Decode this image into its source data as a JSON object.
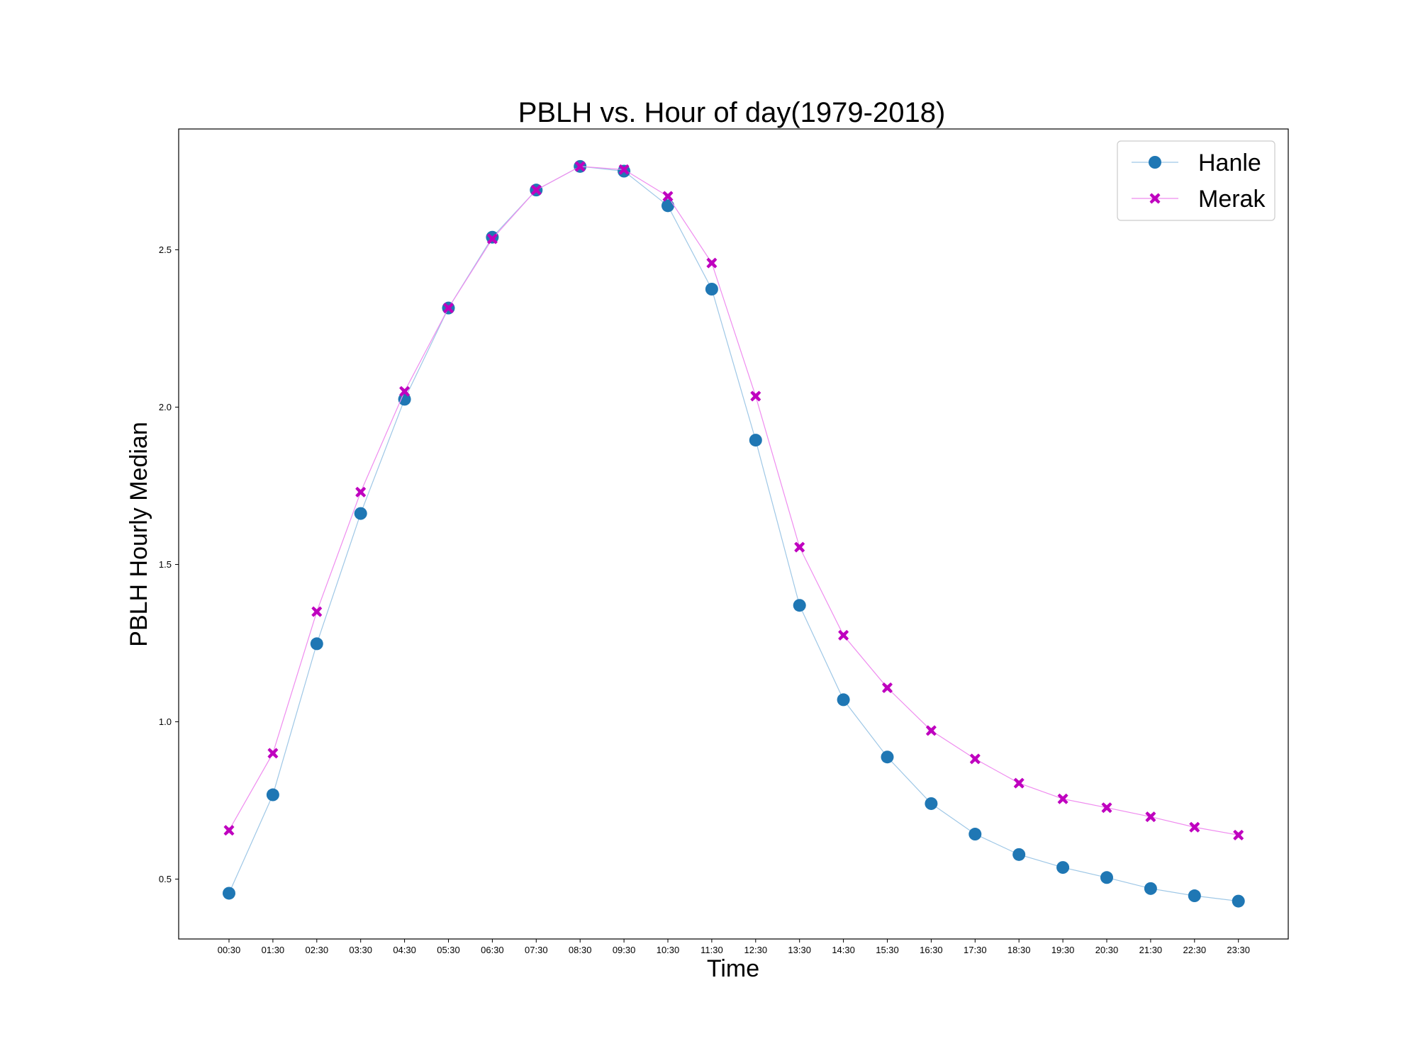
{
  "chart_data": {
    "type": "line",
    "title": "PBLH vs. Hour of day(1979-2018)",
    "xlabel": "Time",
    "ylabel": "PBLH Hourly Median",
    "categories": [
      "00:30",
      "01:30",
      "02:30",
      "03:30",
      "04:30",
      "05:30",
      "06:30",
      "07:30",
      "08:30",
      "09:30",
      "10:30",
      "11:30",
      "12:30",
      "13:30",
      "14:30",
      "15:30",
      "16:30",
      "17:30",
      "18:30",
      "19:30",
      "20:30",
      "21:30",
      "22:30",
      "23:30"
    ],
    "yticks": [
      "0.5",
      "1.0",
      "1.5",
      "2.0",
      "2.5"
    ],
    "ylim": [
      0.33,
      2.9
    ],
    "grid": false,
    "legend_position": "top-right",
    "series": [
      {
        "name": "Hanle",
        "color": "#1f77b4",
        "line_color": "#9ec7e6",
        "marker": "circle",
        "values": [
          0.455,
          0.768,
          1.248,
          1.662,
          2.025,
          2.315,
          2.54,
          2.69,
          2.765,
          2.75,
          2.64,
          2.375,
          1.895,
          1.37,
          1.07,
          0.888,
          0.74,
          0.643,
          0.578,
          0.537,
          0.505,
          0.47,
          0.447,
          0.43
        ]
      },
      {
        "name": "Merak",
        "color": "#bf00bf",
        "line_color": "#ef8cef",
        "marker": "x",
        "values": [
          0.655,
          0.9,
          1.35,
          1.73,
          2.05,
          2.315,
          2.535,
          2.69,
          2.765,
          2.755,
          2.67,
          2.458,
          2.035,
          1.555,
          1.275,
          1.108,
          0.972,
          0.882,
          0.805,
          0.755,
          0.727,
          0.698,
          0.665,
          0.64
        ]
      }
    ]
  }
}
